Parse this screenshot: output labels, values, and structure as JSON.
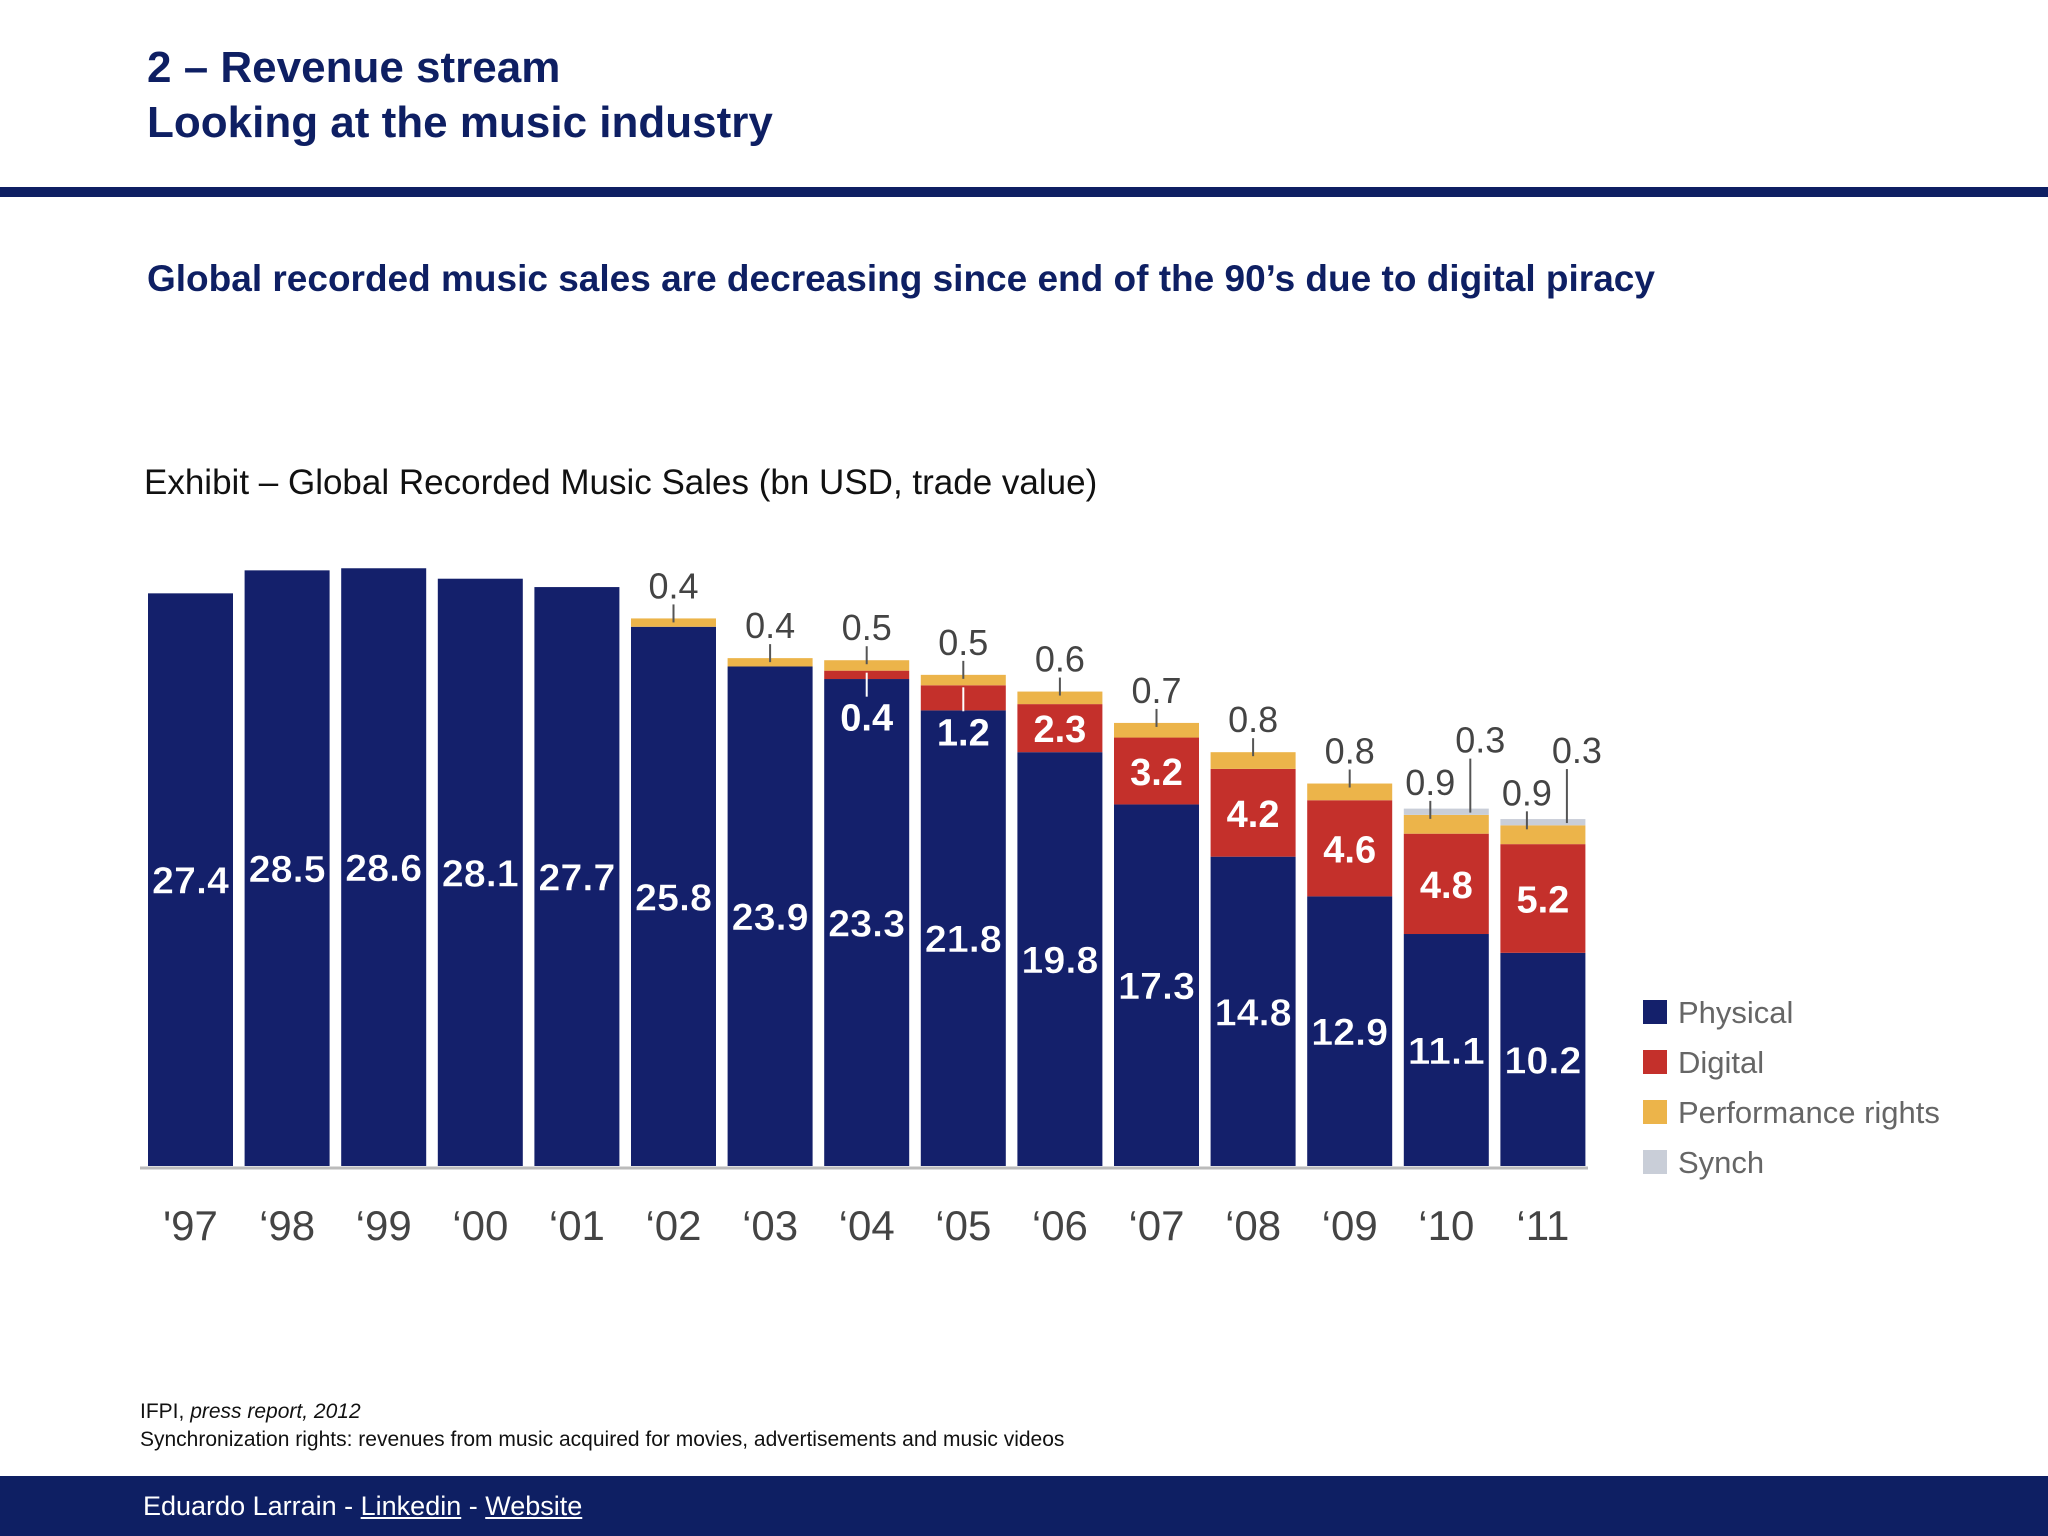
{
  "header": {
    "title_line1": "2 – Revenue stream",
    "title_line2": "Looking at the music industry"
  },
  "subtitle": "Global recorded music sales are decreasing since end of the 90’s due to digital piracy",
  "exhibit_title": "Exhibit – Global Recorded Music Sales (bn USD, trade value)",
  "notes": {
    "source_prefix": "IFPI, ",
    "source_italic": "press report, 2012",
    "sync_note": "Synchronization rights: revenues from music acquired for movies, advertisements and music videos"
  },
  "footer": {
    "author": "Eduardo Larrain",
    "sep": " - ",
    "linkedin": "Linkedin",
    "website": "Website"
  },
  "chart_data": {
    "type": "bar",
    "stacked": true,
    "categories": [
      "'97",
      "‘98",
      "‘99",
      "‘00",
      "‘01",
      "‘02",
      "‘03",
      "‘04",
      "‘05",
      "‘06",
      "‘07",
      "‘08",
      "‘09",
      "‘10",
      "‘11"
    ],
    "series": [
      {
        "name": "Physical",
        "color": "#14206b",
        "values": [
          27.4,
          28.5,
          28.6,
          28.1,
          27.7,
          25.8,
          23.9,
          23.3,
          21.8,
          19.8,
          17.3,
          14.8,
          12.9,
          11.1,
          10.2
        ]
      },
      {
        "name": "Digital",
        "color": "#c4302b",
        "values": [
          0,
          0,
          0,
          0,
          0,
          0,
          0,
          0.4,
          1.2,
          2.3,
          3.2,
          4.2,
          4.6,
          4.8,
          5.2
        ]
      },
      {
        "name": "Performance rights",
        "color": "#ecb44a",
        "values": [
          0,
          0,
          0,
          0,
          0,
          0.4,
          0.4,
          0.5,
          0.5,
          0.6,
          0.7,
          0.8,
          0.8,
          0.9,
          0.9
        ]
      },
      {
        "name": "Synch",
        "color": "#c9ced8",
        "values": [
          0,
          0,
          0,
          0,
          0,
          0,
          0,
          0,
          0,
          0,
          0,
          0,
          0,
          0.3,
          0.3
        ]
      }
    ],
    "ylim": [
      0,
      30
    ],
    "grid": false,
    "legend": "right",
    "xlabel": "",
    "ylabel": ""
  }
}
